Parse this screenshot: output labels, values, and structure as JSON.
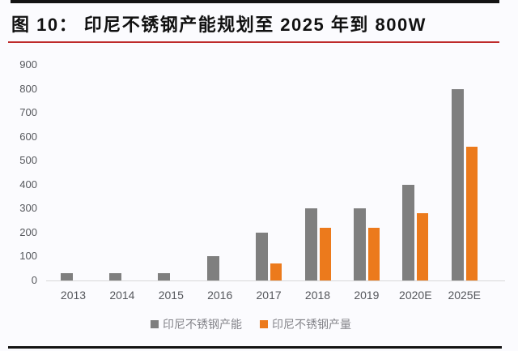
{
  "title": {
    "text": "图 10：  印尼不锈钢产能规划至 2025 年到 800W"
  },
  "colors": {
    "capacity_bar": "#7F7F7F",
    "output_bar": "#EC7A1C",
    "red_rule": "#BE2A2A",
    "black_rule": "#141414",
    "axis_text": "#55575C",
    "legend_text": "#84848A",
    "axis_line": "#D8D8D8",
    "background": "#FBFBFE"
  },
  "chart_data": {
    "type": "bar",
    "title": "印尼不锈钢产能规划至2025年到800W",
    "categories": [
      "2013",
      "2014",
      "2015",
      "2016",
      "2017",
      "2018",
      "2019",
      "2020E",
      "2025E"
    ],
    "series": [
      {
        "key": "capacity",
        "name": "印尼不锈钢产能",
        "color_key": "capacity_bar",
        "values": [
          30,
          30,
          30,
          100,
          200,
          300,
          300,
          400,
          800
        ]
      },
      {
        "key": "output",
        "name": "印尼不锈钢产量",
        "color_key": "output_bar",
        "values": [
          0,
          0,
          0,
          0,
          70,
          220,
          220,
          280,
          560
        ]
      }
    ],
    "xlabel": "",
    "ylabel": "",
    "ylim": [
      0,
      900
    ],
    "yticks": [
      0,
      100,
      200,
      300,
      400,
      500,
      600,
      700,
      800,
      900
    ],
    "grid": false,
    "legend_position": "bottom"
  }
}
